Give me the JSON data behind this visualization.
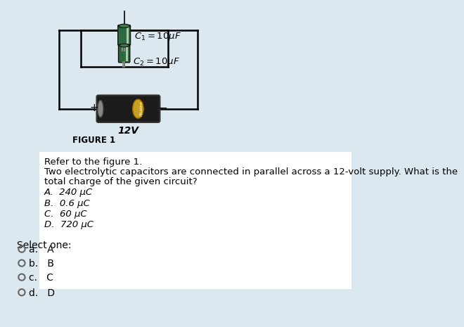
{
  "bg_color": "#dce8f0",
  "white_panel_color": "#ffffff",
  "figure_label": "FIGURE 1",
  "q_line1": "Refer to the figure 1.",
  "q_line2": "Two electrolytic capacitors are connected in parallel across a 12-volt supply. What is the",
  "q_line3": "total charge of the given circuit?",
  "choices": [
    "A.  240 μC",
    "B.  0.6 μC",
    "C.  60 μC",
    "D.  720 μC"
  ],
  "select_one_label": "Select one:",
  "radio_labels": [
    "a.",
    "b.",
    "c.",
    "d."
  ],
  "radio_values": [
    "A",
    "B",
    "C",
    "D"
  ],
  "c1_label": "$C_1 = 10\\mu F$",
  "c2_label": "$C_2 = 10\\mu F$",
  "voltage_label": "12V",
  "wire_color": "#000000",
  "cap_body_color": "#2d6b3c",
  "cap_stripe_color": "#c8c8c8",
  "cap_top_color": "#1a4a25",
  "bat_body_color": "#1c1c1c",
  "bat_ring_color": "#c8a020",
  "bat_end_color": "#888888",
  "plus_minus_color": "#000000"
}
